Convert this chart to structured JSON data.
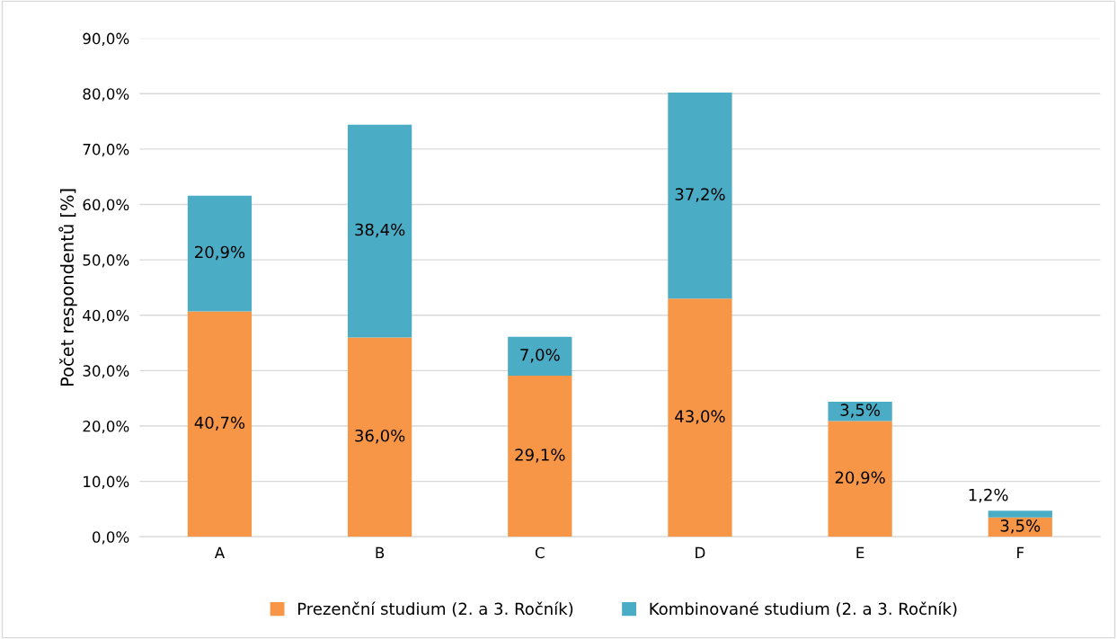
{
  "chart_data": {
    "type": "bar",
    "stacked": true,
    "ylabel": "Počet respondentů [%]",
    "categories": [
      "A",
      "B",
      "C",
      "D",
      "E",
      "F"
    ],
    "series": [
      {
        "name": "Prezenční studium (2. a 3. Ročník)",
        "color": "#f79646",
        "values": [
          40.7,
          36.0,
          29.1,
          43.0,
          20.9,
          3.5
        ],
        "value_labels": [
          "40,7%",
          "36,0%",
          "29,1%",
          "43,0%",
          "20,9%",
          "3,5%"
        ]
      },
      {
        "name": "Kombinované studium (2. a 3. Ročník)",
        "color": "#4bacc6",
        "values": [
          20.9,
          38.4,
          7.0,
          37.2,
          3.5,
          1.2
        ],
        "value_labels": [
          "20,9%",
          "38,4%",
          "7,0%",
          "37,2%",
          "3,5%",
          "1,2%"
        ]
      }
    ],
    "ylim": [
      0,
      90
    ],
    "yticks": [
      {
        "value": 0,
        "label": "0,0%"
      },
      {
        "value": 10,
        "label": "10,0%"
      },
      {
        "value": 20,
        "label": "20,0%"
      },
      {
        "value": 30,
        "label": "30,0%"
      },
      {
        "value": 40,
        "label": "40,0%"
      },
      {
        "value": 50,
        "label": "50,0%"
      },
      {
        "value": 60,
        "label": "60,0%"
      },
      {
        "value": 70,
        "label": "70,0%"
      },
      {
        "value": 80,
        "label": "80,0%"
      },
      {
        "value": 90,
        "label": "90,0%"
      }
    ],
    "grid": "y",
    "legend": "bottom"
  }
}
